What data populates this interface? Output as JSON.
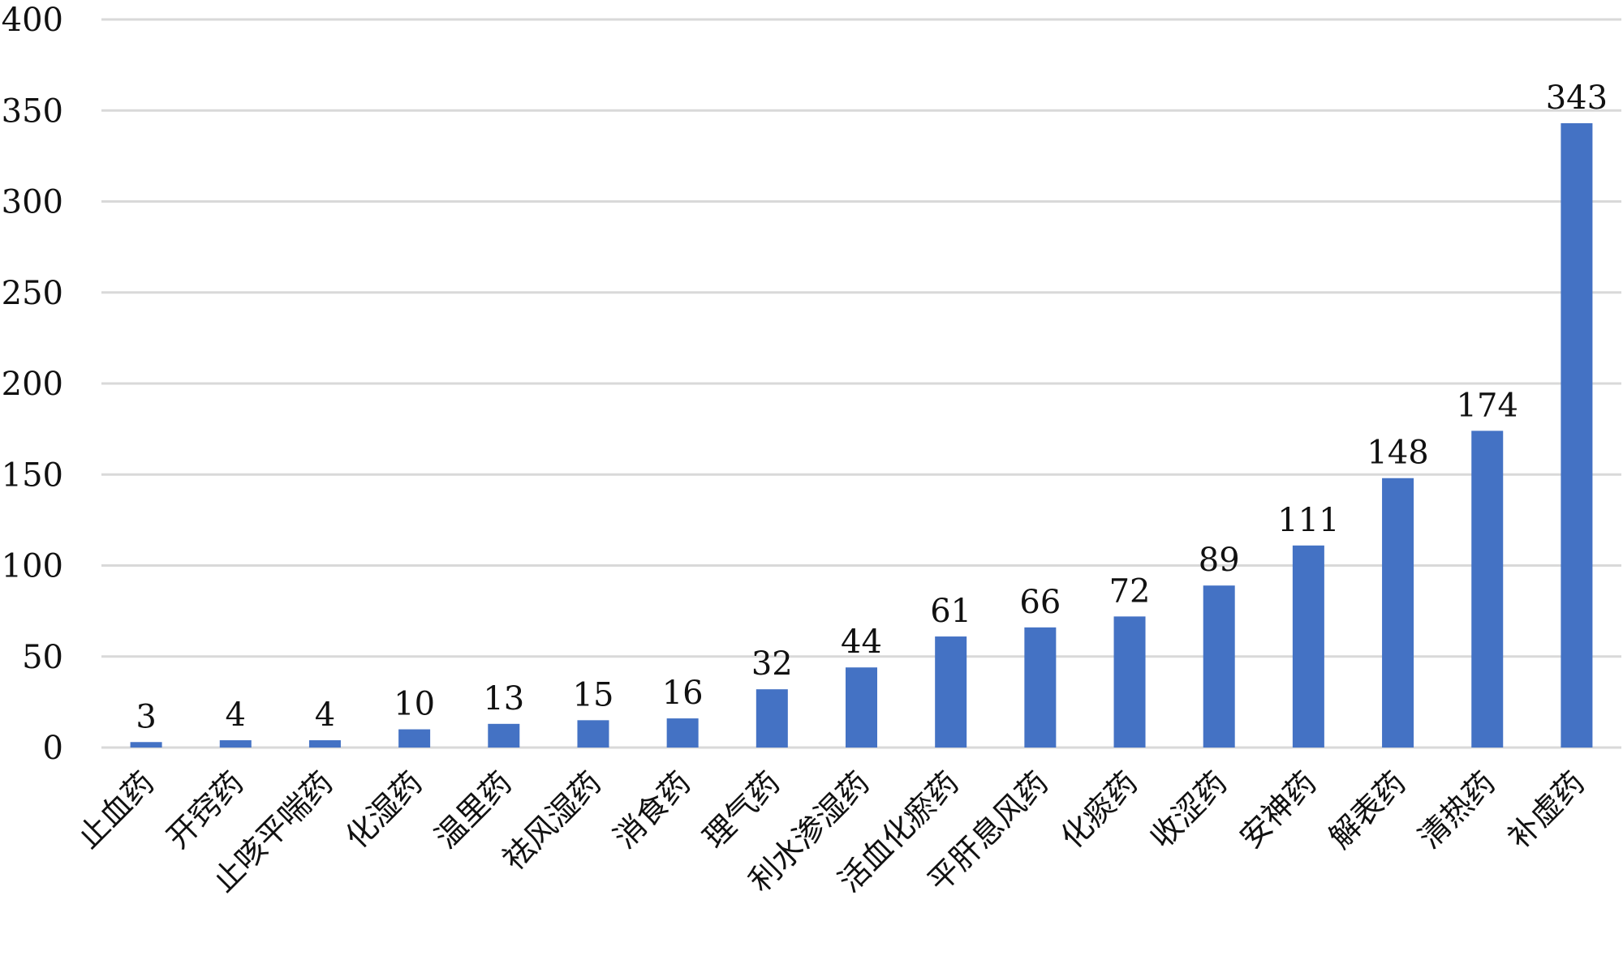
{
  "chart_data": {
    "type": "bar",
    "categories": [
      "止血药",
      "开窍药",
      "止咳平喘药",
      "化湿药",
      "温里药",
      "祛风湿药",
      "消食药",
      "理气药",
      "利水渗湿药",
      "活血化瘀药",
      "平肝息风药",
      "化痰药",
      "收涩药",
      "安神药",
      "解表药",
      "清热药",
      "补虚药"
    ],
    "values": [
      3,
      4,
      4,
      10,
      13,
      15,
      16,
      32,
      44,
      61,
      66,
      72,
      89,
      111,
      148,
      174,
      343
    ],
    "ylim": [
      0,
      400
    ],
    "yticks": [
      0,
      50,
      100,
      150,
      200,
      250,
      300,
      350,
      400
    ],
    "title": "",
    "xlabel": "",
    "ylabel": "",
    "grid": true,
    "legend": "none",
    "bar_color": "#4472C4",
    "grid_color": "#d9d9d9",
    "data_labels": true
  }
}
